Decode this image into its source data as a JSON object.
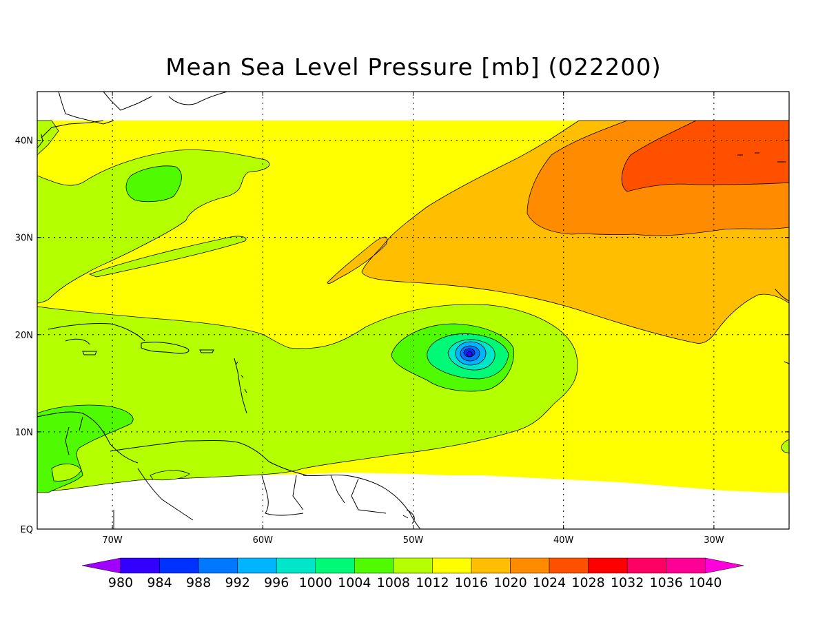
{
  "title": "Mean Sea Level Pressure [mb] (022200)",
  "map": {
    "lon_range": [
      -75,
      -25
    ],
    "lat_range": [
      0,
      45
    ],
    "lon_ticks": [
      {
        "value": -70,
        "label": "70W"
      },
      {
        "value": -60,
        "label": "60W"
      },
      {
        "value": -50,
        "label": "50W"
      },
      {
        "value": -40,
        "label": "40W"
      },
      {
        "value": -30,
        "label": "30W"
      }
    ],
    "lat_ticks": [
      {
        "value": 0,
        "label": "EQ"
      },
      {
        "value": 10,
        "label": "10N"
      },
      {
        "value": 20,
        "label": "20N"
      },
      {
        "value": 30,
        "label": "30N"
      },
      {
        "value": 40,
        "label": "40N"
      }
    ],
    "grid": "dotted",
    "storm_center": {
      "lon": -46.3,
      "lat": 18.0
    }
  },
  "colorbar": {
    "levels": [
      "980",
      "984",
      "988",
      "992",
      "996",
      "1000",
      "1004",
      "1008",
      "1012",
      "1016",
      "1020",
      "1024",
      "1028",
      "1032",
      "1036",
      "1040"
    ],
    "colors": [
      "#a000ff",
      "#3200ff",
      "#0032ff",
      "#0078ff",
      "#00b4ff",
      "#00e6c8",
      "#00fa78",
      "#50fa00",
      "#b4ff00",
      "#ffff00",
      "#ffbe00",
      "#ff8c00",
      "#ff5000",
      "#ff0000",
      "#ff0064",
      "#ff0096",
      "#ff00dc"
    ]
  }
}
